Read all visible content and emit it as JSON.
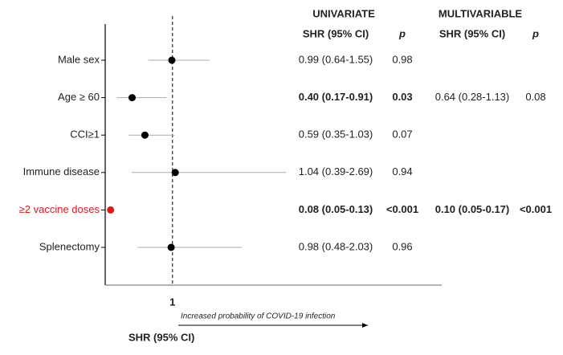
{
  "chart_data": {
    "type": "forest",
    "categories": [
      "Male sex",
      "Age ≥ 60",
      "CCI≥1",
      "Immune disease",
      "≥2 vaccine doses",
      "Splenectomy"
    ],
    "series": [
      {
        "values": [
          0.99,
          0.4,
          0.59,
          1.04,
          0.08,
          0.98
        ],
        "ci_low": [
          0.64,
          0.17,
          0.35,
          0.39,
          0.05,
          0.48
        ],
        "ci_high": [
          1.55,
          0.91,
          1.03,
          2.69,
          0.13,
          2.03
        ],
        "color": "#000000"
      }
    ],
    "marker_colors": [
      "#000000",
      "#000000",
      "#000000",
      "#000000",
      "#e8141c",
      "#000000"
    ],
    "label_colors": [
      "#222222",
      "#222222",
      "#222222",
      "#222222",
      "#e8141c",
      "#222222"
    ],
    "ci_color": "#aaaaaa",
    "xlim": [
      0,
      5
    ],
    "xticks": [
      1
    ],
    "xlabel": "SHR (95% CI)",
    "annotation": "Increased probability of COVID-19 infection",
    "table": [
      {
        "title": "UNIVARIATE",
        "headers": [
          "SHR (95% CI)",
          "p"
        ],
        "cells": [
          [
            "0.99 (0.64-1.55)",
            "0.98"
          ],
          [
            "0.40 (0.17-0.91)",
            "0.03"
          ],
          [
            "0.59 (0.35-1.03)",
            "0.07"
          ],
          [
            "1.04 (0.39-2.69)",
            "0.94"
          ],
          [
            "0.08 (0.05-0.13)",
            "<0.001"
          ],
          [
            "0.98 (0.48-2.03)",
            "0.96"
          ]
        ],
        "bold": [
          false,
          true,
          false,
          false,
          true,
          false
        ]
      },
      {
        "title": "MULTIVARIABLE",
        "headers": [
          "SHR (95% CI)",
          "p"
        ],
        "cells": [
          [
            null,
            null
          ],
          [
            "0.64 (0.28-1.13)",
            "0.08"
          ],
          [
            null,
            null
          ],
          [
            null,
            null
          ],
          [
            "0.10 (0.05-0.17)",
            "<0.001"
          ],
          [
            null,
            null
          ]
        ],
        "bold": [
          false,
          false,
          false,
          false,
          true,
          false
        ]
      }
    ]
  }
}
